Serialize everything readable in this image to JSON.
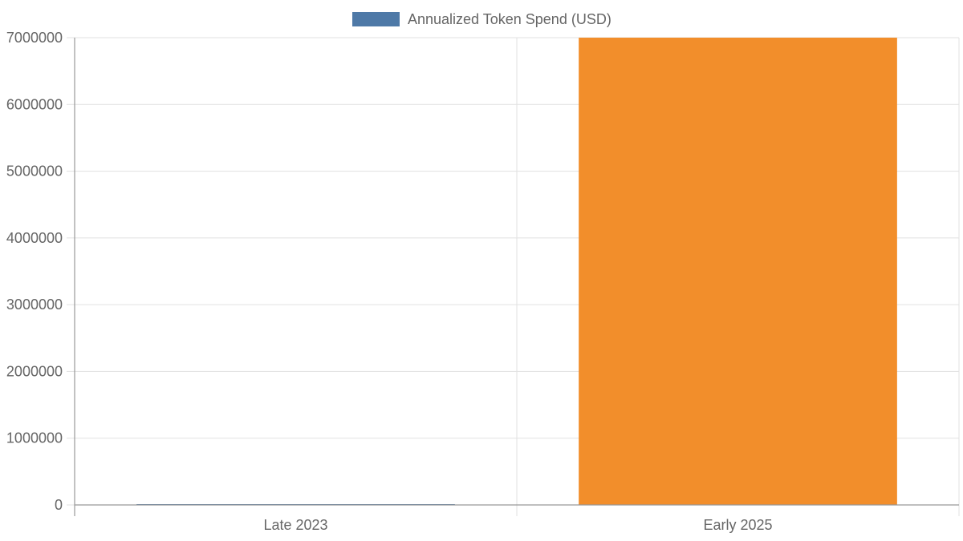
{
  "chart_data": {
    "type": "bar",
    "categories": [
      "Late 2023",
      "Early 2025"
    ],
    "series": [
      {
        "name": "Annualized Token Spend (USD)",
        "values": [
          3000,
          7000000
        ],
        "colors": [
          "#4e79a7",
          "#f28e2b"
        ]
      }
    ],
    "legend": {
      "label": "Annualized Token Spend (USD)",
      "color": "#4e79a7",
      "position": "top"
    },
    "ylim": [
      0,
      7000000
    ],
    "yticks": [
      "0",
      "1000000",
      "2000000",
      "3000000",
      "4000000",
      "5000000",
      "6000000",
      "7000000"
    ],
    "grid": true,
    "title": "",
    "xlabel": "",
    "ylabel": ""
  }
}
